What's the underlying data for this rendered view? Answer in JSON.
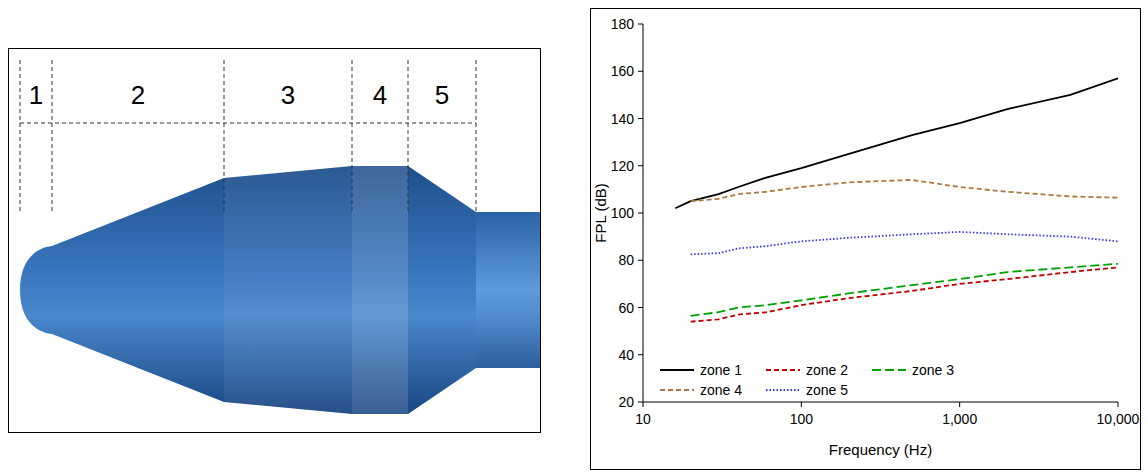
{
  "diagram": {
    "zones": [
      "1",
      "2",
      "3",
      "4",
      "5"
    ]
  },
  "chart_data": {
    "type": "line",
    "log": "x",
    "grid": false,
    "legend": "lower left",
    "x_label": "Frequency (Hz)",
    "y_label": "FPL (dB)",
    "xlim": [
      10,
      10000
    ],
    "ylim": [
      20,
      180
    ],
    "xticks": [
      10,
      100,
      {
        "value": 1000,
        "label": "1,000"
      },
      {
        "value": 10000,
        "label": "10,000"
      }
    ],
    "yticks": [
      20,
      40,
      60,
      80,
      100,
      120,
      140,
      160,
      180
    ],
    "x": [
      16,
      20,
      30,
      40,
      60,
      100,
      200,
      500,
      1000,
      2000,
      5000,
      10000
    ],
    "series": [
      {
        "name": "zone 1",
        "color": "#000000",
        "line_style": "solid",
        "values": [
          102,
          105,
          108,
          111,
          115,
          119,
          125,
          133,
          138,
          144,
          150,
          157
        ]
      },
      {
        "name": "zone 2",
        "color": "#c00000",
        "line_style": "dashed",
        "values": [
          null,
          54,
          55,
          57,
          58,
          61,
          64,
          67,
          70,
          72,
          75,
          77
        ]
      },
      {
        "name": "zone 3",
        "color": "#00a000",
        "line_style": "long-dash",
        "values": [
          null,
          56.5,
          58,
          60,
          61,
          63,
          66,
          69.5,
          72,
          75,
          77,
          78.5
        ]
      },
      {
        "name": "zone 4",
        "color": "#b07840",
        "line_style": "dashed",
        "values": [
          null,
          105,
          106,
          108,
          109,
          111,
          113,
          114,
          111,
          109,
          107,
          106.5
        ]
      },
      {
        "name": "zone 5",
        "color": "#3333ff",
        "line_style": "dotted",
        "values": [
          null,
          82.5,
          83,
          85,
          86,
          88,
          89.5,
          91,
          92,
          91,
          90,
          88
        ]
      }
    ]
  }
}
